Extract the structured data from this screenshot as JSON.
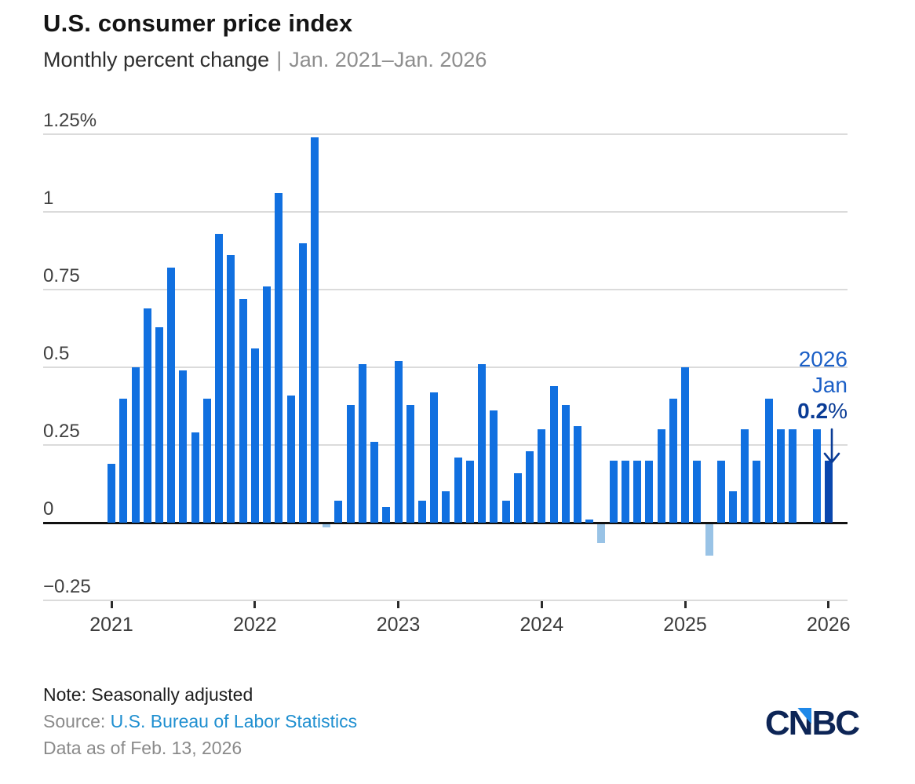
{
  "header": {
    "title": "U.S. consumer price index",
    "subtitle_main": "Monthly percent change",
    "subtitle_sep": "|",
    "subtitle_range": "Jan. 2021–Jan. 2026"
  },
  "chart_data": {
    "type": "bar",
    "title": "U.S. consumer price index",
    "subtitle": "Monthly percent change",
    "date_range": "Jan. 2021–Jan. 2026",
    "unit": "percent",
    "ylim": [
      -0.25,
      1.25
    ],
    "grid": true,
    "legend": false,
    "y_ticks": [
      {
        "value": 1.25,
        "label": "1.25%"
      },
      {
        "value": 1.0,
        "label": "1"
      },
      {
        "value": 0.75,
        "label": "0.75"
      },
      {
        "value": 0.5,
        "label": "0.5"
      },
      {
        "value": 0.25,
        "label": "0.25"
      },
      {
        "value": 0.0,
        "label": "0"
      },
      {
        "value": -0.25,
        "label": "−0.25"
      }
    ],
    "x_ticks": [
      "2021",
      "2022",
      "2023",
      "2024",
      "2025",
      "2026"
    ],
    "categories": [
      "Jan 2021",
      "Feb 2021",
      "Mar 2021",
      "Apr 2021",
      "May 2021",
      "Jun 2021",
      "Jul 2021",
      "Aug 2021",
      "Sep 2021",
      "Oct 2021",
      "Nov 2021",
      "Dec 2021",
      "Jan 2022",
      "Feb 2022",
      "Mar 2022",
      "Apr 2022",
      "May 2022",
      "Jun 2022",
      "Jul 2022",
      "Aug 2022",
      "Sep 2022",
      "Oct 2022",
      "Nov 2022",
      "Dec 2022",
      "Jan 2023",
      "Feb 2023",
      "Mar 2023",
      "Apr 2023",
      "May 2023",
      "Jun 2023",
      "Jul 2023",
      "Aug 2023",
      "Sep 2023",
      "Oct 2023",
      "Nov 2023",
      "Dec 2023",
      "Jan 2024",
      "Feb 2024",
      "Mar 2024",
      "Apr 2024",
      "May 2024",
      "Jun 2024",
      "Jul 2024",
      "Aug 2024",
      "Sep 2024",
      "Oct 2024",
      "Nov 2024",
      "Dec 2024",
      "Jan 2025",
      "Feb 2025",
      "Mar 2025",
      "Apr 2025",
      "May 2025",
      "Jun 2025",
      "Jul 2025",
      "Aug 2025",
      "Sep 2025",
      "Oct 2025",
      "Nov 2025",
      "Dec 2025",
      "Jan 2026"
    ],
    "values": [
      0.19,
      0.4,
      0.5,
      0.69,
      0.63,
      0.82,
      0.49,
      0.29,
      0.4,
      0.93,
      0.86,
      0.72,
      0.56,
      0.76,
      1.06,
      0.41,
      0.9,
      1.24,
      -0.01,
      0.07,
      0.38,
      0.51,
      0.26,
      0.05,
      0.52,
      0.38,
      0.07,
      0.42,
      0.1,
      0.21,
      0.2,
      0.51,
      0.36,
      0.07,
      0.16,
      0.23,
      0.3,
      0.44,
      0.38,
      0.31,
      0.01,
      -0.06,
      0.2,
      0.2,
      0.2,
      0.2,
      0.3,
      0.4,
      0.5,
      0.2,
      -0.1,
      0.2,
      0.1,
      0.3,
      0.2,
      0.4,
      0.3,
      0.3,
      null,
      0.3,
      0.2
    ],
    "missing_months": [
      "Nov 2025"
    ],
    "highlight": {
      "category": "Jan 2026",
      "index": 60,
      "callout": "2026 Jan 0.2%"
    }
  },
  "annotation": {
    "year": "2026",
    "month": "Jan",
    "value": "0.2",
    "pct": "%"
  },
  "footer": {
    "note": "Note: Seasonally adjusted",
    "source_label": "Source: ",
    "source_link": "U.S. Bureau of Labor Statistics",
    "asof": "Data as of Feb. 13, 2026",
    "logo_c1": "C",
    "logo_n": "N",
    "logo_bc": "BC"
  },
  "colors": {
    "bar": "#1170E0",
    "bar_negative": "#99C3E6",
    "bar_highlight": "#0A47AE",
    "grid": "#DBDBDB",
    "zero_line": "#111111",
    "annotation_blue": "#1B5FC6",
    "annotation_value": "#0A3C96",
    "link_blue": "#1F8FD0",
    "logo_navy": "#0D2556",
    "logo_triangle": "#1E88E8"
  }
}
